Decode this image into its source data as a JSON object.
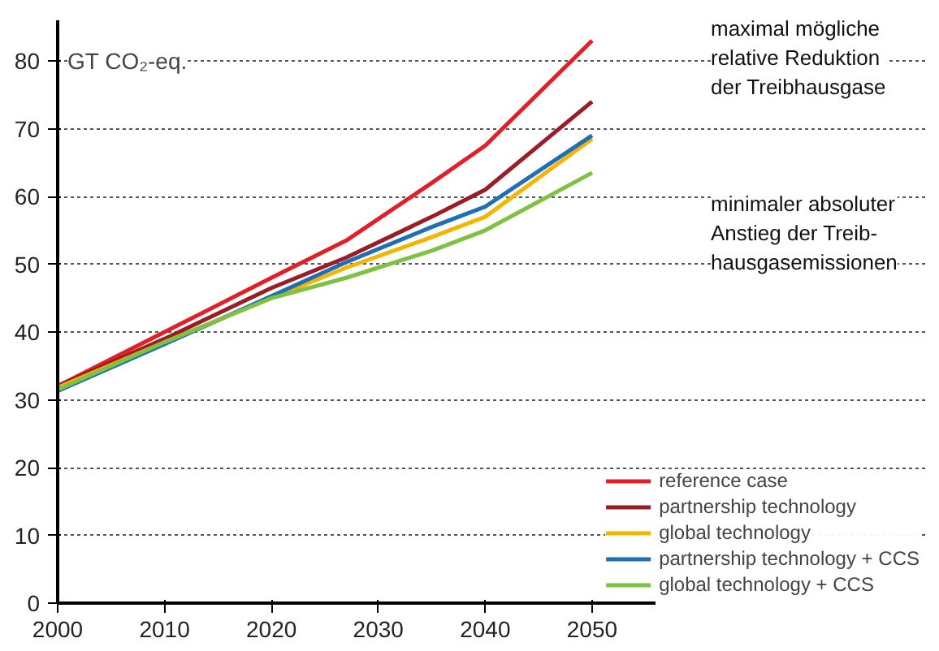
{
  "chart_data": {
    "type": "line",
    "ylabel": "GT CO₂-eq.",
    "x": [
      2000,
      2010,
      2020,
      2027,
      2035,
      2040,
      2050
    ],
    "series": [
      {
        "name": "reference case",
        "color": "#e41e26",
        "values": [
          32,
          40,
          48,
          53.5,
          62,
          67.5,
          83
        ]
      },
      {
        "name": "partnership technology",
        "color": "#9b1c24",
        "values": [
          32,
          39,
          46.5,
          51,
          57,
          61,
          74
        ]
      },
      {
        "name": "global technology",
        "color": "#f5b400",
        "values": [
          31.8,
          38.5,
          45,
          49.5,
          54,
          57,
          68.5
        ]
      },
      {
        "name": "partnership technology + CCS",
        "color": "#1f6fb5",
        "values": [
          31.3,
          38.2,
          45.3,
          50.3,
          55.5,
          58.5,
          69
        ]
      },
      {
        "name": "global technology + CCS",
        "color": "#7fc241",
        "values": [
          31.5,
          38.5,
          45,
          48,
          52,
          55,
          63.5
        ]
      }
    ],
    "xlim": [
      2000,
      2056
    ],
    "ylim": [
      0,
      86
    ],
    "xticks": [
      2000,
      2010,
      2020,
      2030,
      2040,
      2050
    ],
    "yticks": [
      0,
      10,
      20,
      30,
      40,
      50,
      60,
      70,
      80
    ],
    "grid": "y",
    "legend": "bottom right",
    "marker": "none",
    "line_style": "solid",
    "annotations": [
      "maximal mögliche\nrelative Reduktion\nder Treibhausgase",
      "minimaler absoluter\nAnstieg der Treib-\nhausgasemissionen"
    ]
  }
}
